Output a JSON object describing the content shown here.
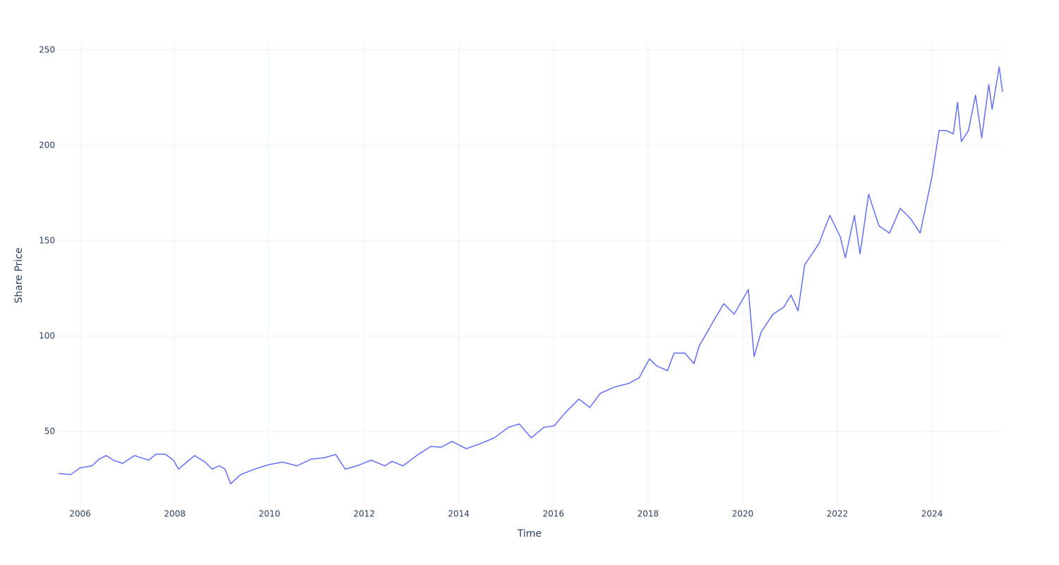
{
  "chart_data": {
    "type": "line",
    "x_label": "Time",
    "y_label": "Share Price",
    "x": [
      2005.54,
      2005.8,
      2006,
      2006.25,
      2006.4,
      2006.55,
      2006.7,
      2006.9,
      2007.15,
      2007.45,
      2007.6,
      2007.8,
      2007.97,
      2008.08,
      2008.22,
      2008.42,
      2008.64,
      2008.79,
      2008.94,
      2009.06,
      2009.18,
      2009.39,
      2009.69,
      2009.98,
      2010.28,
      2010.58,
      2010.88,
      2011.17,
      2011.4,
      2011.6,
      2011.85,
      2012.15,
      2012.44,
      2012.59,
      2012.82,
      2013.11,
      2013.41,
      2013.63,
      2013.86,
      2014.16,
      2014.46,
      2014.75,
      2015.05,
      2015.28,
      2015.53,
      2015.8,
      2016.02,
      2016.24,
      2016.54,
      2016.77,
      2016.99,
      2017.29,
      2017.59,
      2017.81,
      2018.03,
      2018.18,
      2018.41,
      2018.55,
      2018.78,
      2018.97,
      2019.08,
      2019.38,
      2019.6,
      2019.82,
      2020.12,
      2020.24,
      2020.39,
      2020.64,
      2020.87,
      2021.02,
      2021.17,
      2021.31,
      2021.61,
      2021.84,
      2022.06,
      2022.17,
      2022.36,
      2022.48,
      2022.66,
      2022.88,
      2023.1,
      2023.33,
      2023.55,
      2023.75,
      2024,
      2024.15,
      2024.3,
      2024.45,
      2024.54,
      2024.62,
      2024.77,
      2024.92,
      2025.05,
      2025.2,
      2025.27,
      2025.42,
      2025.49
    ],
    "values": [
      28,
      27.4,
      31,
      32,
      35.5,
      37.4,
      35,
      33.3,
      37.4,
      35,
      38.1,
      38.1,
      35,
      30.3,
      33.3,
      37.4,
      34,
      30.3,
      32,
      30.3,
      22.6,
      27.4,
      30.3,
      32.6,
      34,
      32,
      35.5,
      36.3,
      38,
      30.3,
      32,
      35,
      32,
      34.4,
      32,
      37.4,
      42.2,
      41.8,
      44.8,
      41,
      43.7,
      46.7,
      52.2,
      54,
      46.7,
      52.2,
      53,
      59.6,
      67,
      62.6,
      70,
      73.3,
      75.2,
      78.1,
      88.1,
      84.4,
      81.9,
      91.1,
      91.1,
      85.6,
      94.8,
      107.8,
      117,
      111.5,
      124.4,
      89.3,
      102.2,
      111.5,
      115.2,
      121.5,
      113.3,
      137.4,
      148.5,
      163.3,
      152.2,
      141.1,
      163.3,
      143,
      174.4,
      157.8,
      154,
      167,
      161.5,
      154,
      183.7,
      207.8,
      207.8,
      206,
      222.6,
      202,
      207.8,
      226.3,
      204,
      231.9,
      218.9,
      241.1,
      228.1
    ],
    "color": "#636efa",
    "xlim": [
      2005.5,
      2025.49
    ],
    "xticks": [
      2006,
      2008,
      2010,
      2012,
      2014,
      2016,
      2018,
      2020,
      2022,
      2024
    ],
    "ylim": [
      11.5,
      254
    ],
    "yticks": [
      50,
      100,
      150,
      200,
      250
    ],
    "grid": true
  }
}
